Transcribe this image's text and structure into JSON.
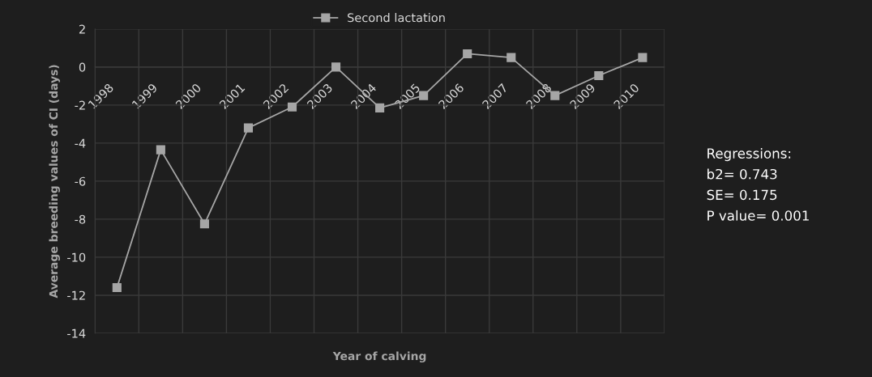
{
  "chart_data": {
    "type": "line",
    "xlabel": "Year of calving",
    "ylabel": "Average breeding values of CI (days)",
    "categories": [
      "1998",
      "1999",
      "2000",
      "2001",
      "2002",
      "2003",
      "2004",
      "2005",
      "2006",
      "2007",
      "2008",
      "2009",
      "2010"
    ],
    "series": [
      {
        "name": "Second lactation",
        "color": "#a6a6a6",
        "values": [
          -11.6,
          -4.35,
          -8.25,
          -3.2,
          -2.1,
          0.0,
          -2.15,
          -1.5,
          0.7,
          0.5,
          -1.5,
          -0.45,
          0.5
        ]
      }
    ],
    "ylim": [
      -14,
      2
    ],
    "yticks": [
      -14,
      -12,
      -10,
      -8,
      -6,
      -4,
      -2,
      0,
      2
    ],
    "grid": true,
    "legend": "top",
    "marker": "square",
    "line_style": "solid",
    "annotations": [
      "Regressions:",
      "b2= 0.743",
      "SE= 0.175",
      "P value= 0.001"
    ]
  }
}
